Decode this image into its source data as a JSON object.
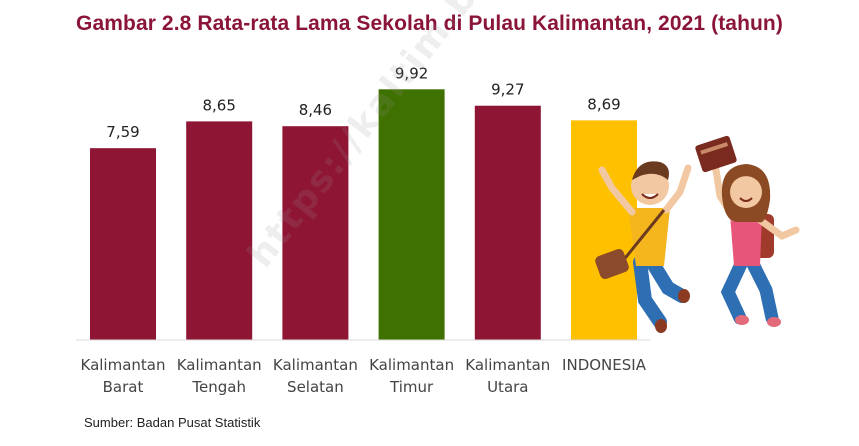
{
  "chart_data": {
    "type": "bar",
    "title": "Gambar 2.8 Rata-rata Lama Sekolah di Pulau Kalimantan, 2021 (tahun)",
    "categories": [
      [
        "Kalimantan",
        "Barat"
      ],
      [
        "Kalimantan",
        "Tengah"
      ],
      [
        "Kalimantan",
        "Selatan"
      ],
      [
        "Kalimantan",
        "Timur"
      ],
      [
        "Kalimantan",
        "Utara"
      ],
      [
        "INDONESIA"
      ]
    ],
    "values": [
      7.59,
      8.65,
      8.46,
      9.92,
      9.27,
      8.69
    ],
    "value_labels": [
      "7,59",
      "8,65",
      "8,46",
      "9,92",
      "9,27",
      "8,69"
    ],
    "colors": [
      "#8f1535",
      "#8f1535",
      "#8f1535",
      "#3f7100",
      "#8f1535",
      "#ffc000"
    ],
    "ylim": [
      0,
      11
    ],
    "grid": false,
    "legend": "none"
  },
  "source": "Sumber: Badan Pusat Statistik",
  "watermark": "https://kaltim.bps.go.id",
  "illustration": "jumping-students-illustration"
}
